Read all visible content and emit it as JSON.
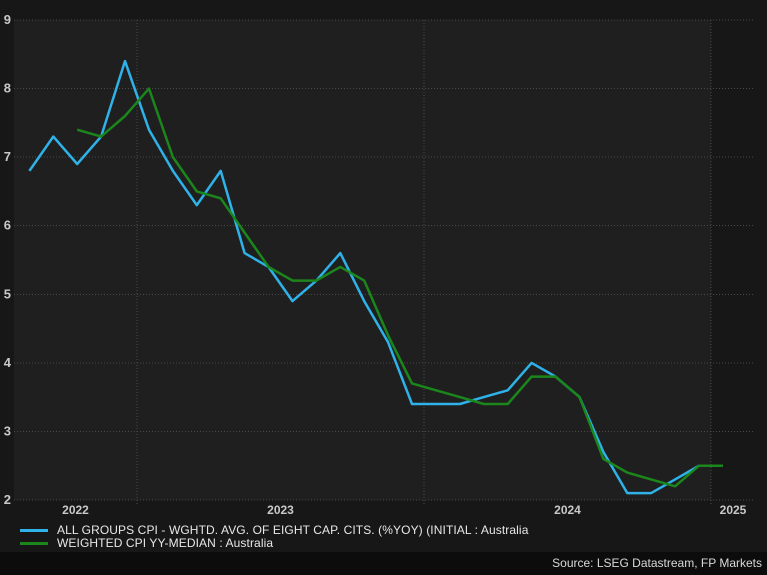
{
  "chart_data": {
    "type": "line",
    "title": "",
    "x_unit": "month",
    "x_range": [
      "2022-07",
      "2025-02"
    ],
    "x_tick_labels": [
      "2022",
      "2023",
      "2024",
      "2025"
    ],
    "year_gridline_months": [
      "2023-01",
      "2024-01",
      "2025-01"
    ],
    "y_ticks": [
      9,
      8,
      7,
      6,
      5,
      4,
      3,
      2
    ],
    "y_tick_labels": [
      "9",
      "8",
      "7",
      "6",
      "5",
      "4",
      "3",
      "2"
    ],
    "ylim": [
      2,
      9
    ],
    "grid": "dotted",
    "legend_position": "bottom-left",
    "series": [
      {
        "name": "ALL GROUPS CPI - WGHTD. AVG. OF EIGHT CAP. CITS. (%YOY) (INITIAL : Australia",
        "color": "#2eb2e8",
        "frequency": "monthly",
        "start_month": "2022-08",
        "values": [
          6.8,
          7.3,
          6.9,
          7.3,
          8.4,
          7.4,
          6.8,
          6.3,
          6.8,
          5.6,
          5.4,
          4.9,
          5.2,
          5.6,
          4.9,
          4.3,
          3.4,
          3.4,
          3.4,
          3.5,
          3.6,
          4.0,
          3.8,
          3.5,
          2.7,
          2.1,
          2.1,
          2.3,
          2.5,
          2.5
        ]
      },
      {
        "name": "WEIGHTED CPI YY-MEDIAN : Australia",
        "color": "#1b861b",
        "frequency": "monthly",
        "start_month": "2022-10",
        "values": [
          7.4,
          7.3,
          7.6,
          8.0,
          7.0,
          6.5,
          6.4,
          5.9,
          5.4,
          5.2,
          5.2,
          5.4,
          5.2,
          4.4,
          3.7,
          3.6,
          3.5,
          3.4,
          3.4,
          3.8,
          3.8,
          3.5,
          2.6,
          2.4,
          2.3,
          2.2,
          2.5,
          2.5
        ]
      }
    ]
  },
  "source": {
    "text": "Source: LSEG Datastream, FP Markets"
  },
  "colors": {
    "background": "#171717",
    "plot_background": "#1f1f1f",
    "gridline": "#4a4a4a",
    "axis_text": "#c9c9c9",
    "legend_text": "#e8e8e8",
    "source_text": "#d9d9d9",
    "source_strip_background": "#0c0c0c"
  }
}
